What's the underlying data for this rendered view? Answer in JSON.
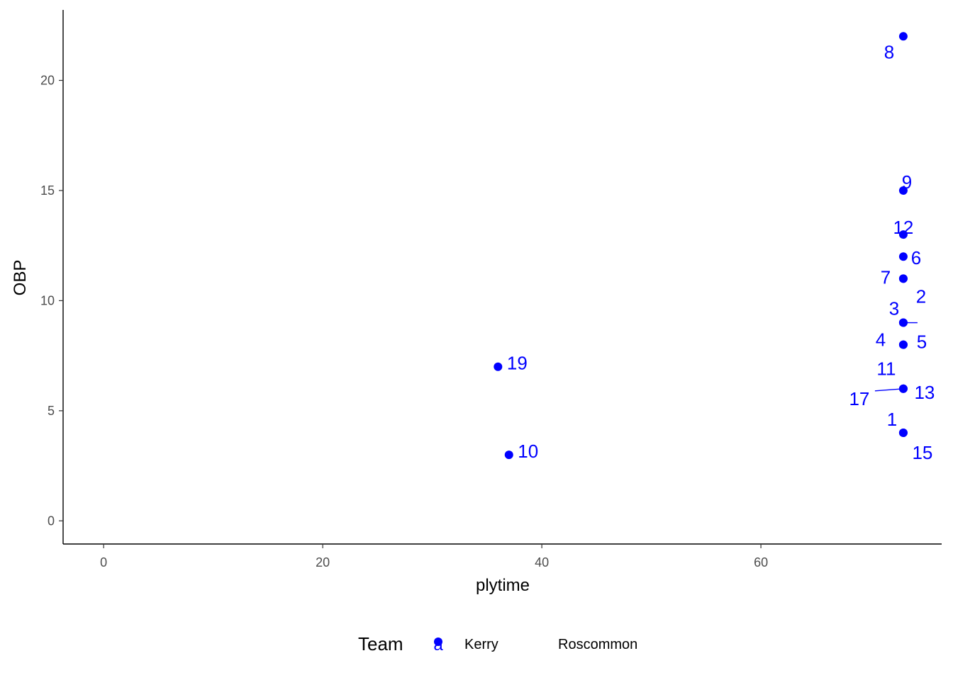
{
  "chart_data": {
    "type": "scatter",
    "xlabel": "plytime",
    "ylabel": "OBP",
    "xlim": [
      -3.7,
      76.5
    ],
    "ylim": [
      -1.05,
      23.2
    ],
    "x_ticks": [
      0,
      20,
      40,
      60
    ],
    "y_ticks": [
      0,
      5,
      10,
      15,
      20
    ],
    "grid": false,
    "point_color": "#0000ff",
    "points": [
      {
        "label": "8",
        "x": 73,
        "y": 22
      },
      {
        "label": "9",
        "x": 73,
        "y": 15
      },
      {
        "label": "12",
        "x": 73,
        "y": 13
      },
      {
        "label": "6",
        "x": 73,
        "y": 12
      },
      {
        "label": "7",
        "x": 73,
        "y": 11
      },
      {
        "label": "2",
        "x": 73,
        "y": 11
      },
      {
        "label": "3",
        "x": 73,
        "y": 9
      },
      {
        "label": "5",
        "x": 73,
        "y": 9
      },
      {
        "label": "4",
        "x": 73,
        "y": 8
      },
      {
        "label": "11",
        "x": 73,
        "y": 8
      },
      {
        "label": "13",
        "x": 73,
        "y": 6
      },
      {
        "label": "17",
        "x": 73,
        "y": 6
      },
      {
        "label": "1",
        "x": 73,
        "y": 4
      },
      {
        "label": "15",
        "x": 73,
        "y": 4
      },
      {
        "label": "19",
        "x": 36,
        "y": 7
      },
      {
        "label": "10",
        "x": 37,
        "y": 3
      }
    ],
    "legend": {
      "title": "Team",
      "position": "bottom",
      "key_glyph": "a",
      "entries": [
        {
          "name": "Kerry",
          "color": "#0000ff"
        },
        {
          "name": "Roscommon",
          "color": "#ffffff"
        }
      ]
    }
  }
}
